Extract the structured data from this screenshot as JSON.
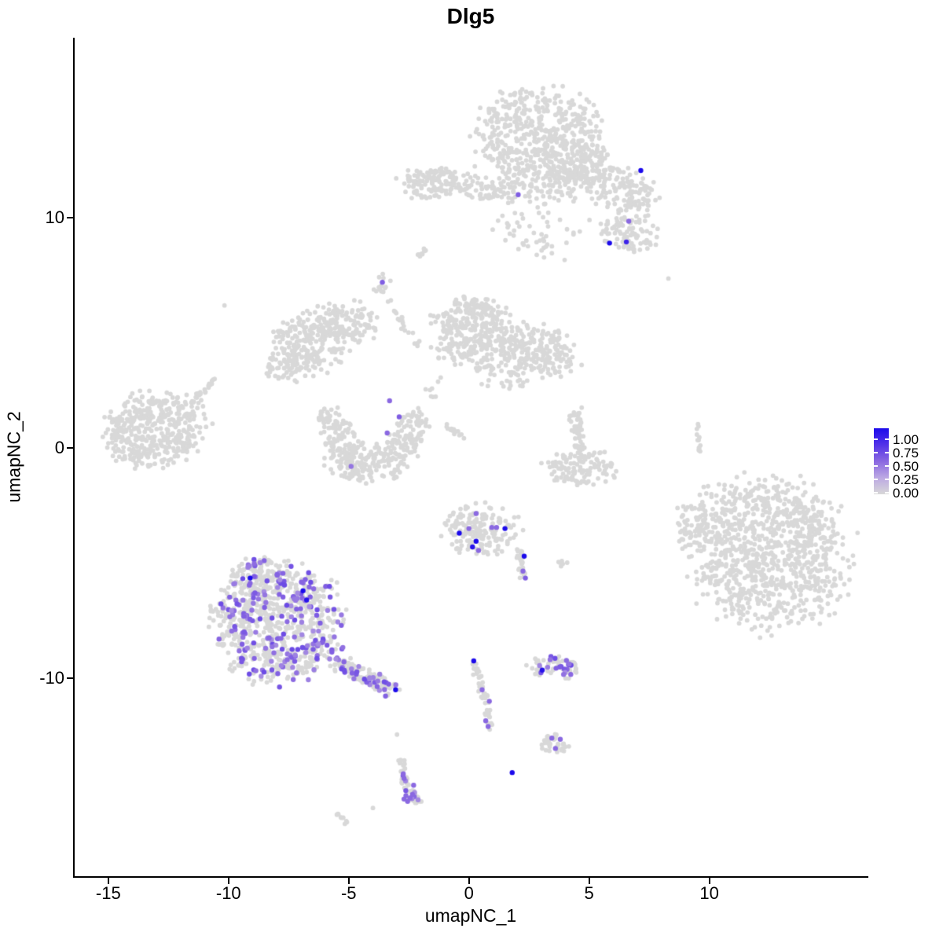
{
  "title": "Dlg5",
  "legend": {
    "labels": [
      "1.00",
      "0.75",
      "0.50",
      "0.25",
      "0.00"
    ]
  },
  "chart_data": {
    "type": "scatter",
    "title": "Dlg5",
    "xlabel": "umapNC_1",
    "ylabel": "umapNC_2",
    "xlim": [
      -16.4,
      16.55
    ],
    "ylim": [
      -18.6,
      17.82
    ],
    "grid": false,
    "legend_position": "right",
    "x_ticks": [
      {
        "label": "-15",
        "value": -15
      },
      {
        "label": "-10",
        "value": -10
      },
      {
        "label": "-5",
        "value": -5
      },
      {
        "label": "0",
        "value": 0
      },
      {
        "label": "5",
        "value": 5
      },
      {
        "label": "10",
        "value": 10
      }
    ],
    "y_ticks": [
      {
        "label": "10",
        "value": 10
      },
      {
        "label": "0",
        "value": 0
      },
      {
        "label": "-10",
        "value": -10
      }
    ],
    "colors": {
      "base_point": "#D8D8D8",
      "scale_stops": [
        "#D8D8D8",
        "#BCA9E3",
        "#8A68E1",
        "#5333E8",
        "#1C0AEB"
      ],
      "axis": "#000000"
    },
    "point_radius_px": 2.9,
    "expressed_radius_px": 3.2,
    "clusters": [
      {
        "name": "top-main",
        "shape": "blob",
        "x": 3.0,
        "y": 13.25,
        "rx": 2.4,
        "ry": 2.25,
        "rot": -15,
        "n": 620,
        "frac": 0
      },
      {
        "name": "top-arm",
        "shape": "blob",
        "x": 6.25,
        "y": 11.2,
        "rx": 1.5,
        "ry": 0.95,
        "rot": -20,
        "n": 140,
        "frac": 0
      },
      {
        "name": "top-bridge",
        "shape": "blob",
        "x": 4.8,
        "y": 12.2,
        "rx": 1.05,
        "ry": 0.9,
        "rot": 0,
        "n": 90,
        "frac": 0
      },
      {
        "name": "top-right-sub",
        "shape": "blob",
        "x": 6.6,
        "y": 9.3,
        "rx": 1.2,
        "ry": 0.8,
        "rot": 0,
        "n": 85,
        "frac": 0
      },
      {
        "name": "top-under-sparse",
        "shape": "blob",
        "x": 3.1,
        "y": 9.7,
        "rx": 1.7,
        "ry": 1.4,
        "rot": 0,
        "n": 60,
        "frac": 0
      },
      {
        "name": "band-left",
        "shape": "blob",
        "x": -1.3,
        "y": 11.5,
        "rx": 1.6,
        "ry": 0.65,
        "rot": 0,
        "n": 150,
        "frac": 0
      },
      {
        "name": "band-right",
        "shape": "blob",
        "x": 1.0,
        "y": 11.05,
        "rx": 0.85,
        "ry": 0.5,
        "rot": 0,
        "n": 45,
        "frac": 0
      },
      {
        "name": "slant-dash",
        "shape": "line",
        "x1": -2.1,
        "y1": 8.3,
        "x2": -1.75,
        "y2": 8.75,
        "w": 0.12,
        "n": 10,
        "frac": 0
      },
      {
        "name": "tiny-top",
        "shape": "blob",
        "x": -3.6,
        "y": 7.15,
        "rx": 0.35,
        "ry": 0.45,
        "rot": 0,
        "n": 14,
        "frac": 0
      },
      {
        "name": "strand-down",
        "shape": "line",
        "x1": -3.35,
        "y1": 6.4,
        "x2": -2.0,
        "y2": 4.2,
        "w": 0.15,
        "n": 20,
        "frac": 0
      },
      {
        "name": "wing-main",
        "shape": "blob",
        "x": -6.5,
        "y": 4.7,
        "rx": 1.55,
        "ry": 1.25,
        "rot": 20,
        "n": 240,
        "frac": 0
      },
      {
        "name": "wing-right",
        "shape": "blob",
        "x": -4.9,
        "y": 5.5,
        "rx": 1.05,
        "ry": 0.85,
        "rot": 0,
        "n": 90,
        "frac": 0
      },
      {
        "name": "wing-tail",
        "shape": "blob",
        "x": -7.6,
        "y": 3.5,
        "rx": 0.8,
        "ry": 0.6,
        "rot": 0,
        "n": 50,
        "frac": 0
      },
      {
        "name": "center-main",
        "shape": "blob",
        "x": 0.2,
        "y": 5.0,
        "rx": 1.6,
        "ry": 1.45,
        "rot": 0,
        "n": 330,
        "frac": 0
      },
      {
        "name": "center-right",
        "shape": "blob",
        "x": 2.9,
        "y": 4.2,
        "rx": 1.5,
        "ry": 1.05,
        "rot": -15,
        "n": 200,
        "frac": 0
      },
      {
        "name": "center-bridge",
        "shape": "blob",
        "x": 1.5,
        "y": 3.3,
        "rx": 1.2,
        "ry": 0.75,
        "rot": 0,
        "n": 45,
        "frac": 0
      },
      {
        "name": "v-strand",
        "shape": "line",
        "x1": 4.45,
        "y1": 1.6,
        "x2": 4.6,
        "y2": -0.3,
        "w": 0.3,
        "n": 55,
        "frac": 0
      },
      {
        "name": "v-base",
        "shape": "blob",
        "x": 4.7,
        "y": -0.85,
        "rx": 1.4,
        "ry": 0.7,
        "rot": 0,
        "n": 110,
        "frac": 0
      },
      {
        "name": "crescent-left",
        "shape": "blob",
        "x": -5.5,
        "y": 0.7,
        "rx": 0.65,
        "ry": 1.05,
        "rot": 25,
        "n": 90,
        "frac": 0
      },
      {
        "name": "crescent-bottom",
        "shape": "blob",
        "x": -4.2,
        "y": -0.65,
        "rx": 1.55,
        "ry": 0.8,
        "rot": 0,
        "n": 170,
        "frac": 0
      },
      {
        "name": "crescent-right",
        "shape": "blob",
        "x": -2.55,
        "y": 0.5,
        "rx": 0.7,
        "ry": 1.2,
        "rot": -20,
        "n": 110,
        "frac": 0
      },
      {
        "name": "far-left",
        "shape": "blob",
        "x": -13.1,
        "y": 0.8,
        "rx": 1.95,
        "ry": 1.45,
        "rot": 10,
        "n": 430,
        "frac": 0
      },
      {
        "name": "far-left-tail",
        "shape": "line",
        "x1": -11.6,
        "y1": 1.9,
        "x2": -10.6,
        "y2": 2.9,
        "w": 0.2,
        "n": 25,
        "frac": 0
      },
      {
        "name": "stray-upper-left",
        "shape": "blob",
        "x": -10.2,
        "y": 6.15,
        "rx": 0.05,
        "ry": 0.05,
        "rot": 0,
        "n": 1,
        "frac": 0
      },
      {
        "name": "legend-side-strand",
        "shape": "line",
        "x1": 9.5,
        "y1": 1.0,
        "x2": 9.6,
        "y2": -0.4,
        "w": 0.08,
        "n": 13,
        "frac": 0
      },
      {
        "name": "mid-strand",
        "shape": "line",
        "x1": -1.1,
        "y1": 1.1,
        "x2": -0.2,
        "y2": 0.4,
        "w": 0.12,
        "n": 14,
        "frac": 0
      },
      {
        "name": "mid-dots",
        "shape": "blob",
        "x": -1.3,
        "y": 2.5,
        "rx": 0.4,
        "ry": 0.55,
        "rot": 0,
        "n": 8,
        "frac": 0
      },
      {
        "name": "right-big",
        "shape": "blob",
        "x": 12.45,
        "y": -4.6,
        "rx": 3.15,
        "ry": 2.95,
        "rot": -25,
        "n": 950,
        "frac": 0
      },
      {
        "name": "right-big-west",
        "shape": "blob",
        "x": 9.45,
        "y": -3.3,
        "rx": 0.95,
        "ry": 0.95,
        "rot": 0,
        "n": 55,
        "frac": 0
      },
      {
        "name": "bottomleft-main",
        "shape": "blob",
        "x": -8.0,
        "y": -7.6,
        "rx": 2.5,
        "ry": 2.35,
        "rot": 0,
        "n": 780,
        "frac": 0.22
      },
      {
        "name": "bottomleft-top",
        "shape": "blob",
        "x": -8.7,
        "y": -5.6,
        "rx": 1.25,
        "ry": 0.8,
        "rot": 0,
        "n": 120,
        "frac": 0.1
      },
      {
        "name": "bottomleft-tail",
        "shape": "line",
        "x1": -5.6,
        "y1": -9.3,
        "x2": -3.1,
        "y2": -10.55,
        "w": 0.45,
        "n": 140,
        "frac": 0.3
      },
      {
        "name": "midbottom-main",
        "shape": "blob",
        "x": 0.5,
        "y": -3.55,
        "rx": 1.5,
        "ry": 1.0,
        "rot": 0,
        "n": 175,
        "frac": 0
      },
      {
        "name": "midbottom-arm",
        "shape": "line",
        "x1": 2.1,
        "y1": -4.5,
        "x2": 2.3,
        "y2": -5.7,
        "w": 0.2,
        "n": 30,
        "frac": 0
      },
      {
        "name": "midbottom-pair",
        "shape": "blob",
        "x": 3.95,
        "y": -5.0,
        "rx": 0.3,
        "ry": 0.15,
        "rot": 0,
        "n": 6,
        "frac": 0
      },
      {
        "name": "purple-small",
        "shape": "blob",
        "x": 3.5,
        "y": -9.5,
        "rx": 1.0,
        "ry": 0.5,
        "rot": 0,
        "n": 70,
        "frac": 0.32
      },
      {
        "name": "strand-bottom",
        "shape": "line",
        "x1": 0.2,
        "y1": -9.4,
        "x2": 1.0,
        "y2": -12.2,
        "w": 0.18,
        "n": 45,
        "frac": 0
      },
      {
        "name": "small-bottom",
        "shape": "blob",
        "x": 3.6,
        "y": -12.8,
        "rx": 0.55,
        "ry": 0.4,
        "rot": 0,
        "n": 32,
        "frac": 0
      },
      {
        "name": "curve-bottom-a",
        "shape": "line",
        "x1": -2.8,
        "y1": -13.55,
        "x2": -2.63,
        "y2": -14.7,
        "w": 0.2,
        "n": 25,
        "frac": 0.12
      },
      {
        "name": "curve-bottom-b",
        "shape": "line",
        "x1": -2.63,
        "y1": -14.7,
        "x2": -2.14,
        "y2": -15.45,
        "w": 0.25,
        "n": 30,
        "frac": 0.15
      },
      {
        "name": "dash-bottom",
        "shape": "line",
        "x1": -5.5,
        "y1": -15.8,
        "x2": -5.1,
        "y2": -16.3,
        "w": 0.1,
        "n": 9,
        "frac": 0
      },
      {
        "name": "stray-bottom-1",
        "shape": "blob",
        "x": -4.0,
        "y": -15.6,
        "rx": 0.05,
        "ry": 0.05,
        "rot": 0,
        "n": 1,
        "frac": 0
      },
      {
        "name": "stray-bottom-2",
        "shape": "blob",
        "x": -3.0,
        "y": -12.45,
        "rx": 0.05,
        "ry": 0.05,
        "rot": 0,
        "n": 1,
        "frac": 0
      },
      {
        "name": "stray-top-right",
        "shape": "blob",
        "x": 8.3,
        "y": 7.35,
        "rx": 0.05,
        "ry": 0.05,
        "rot": 0,
        "n": 1,
        "frac": 0
      }
    ],
    "expressed_points": [
      {
        "x": 7.15,
        "y": 12.05,
        "level": 1.0
      },
      {
        "x": 5.85,
        "y": 8.9,
        "level": 1.0
      },
      {
        "x": 6.55,
        "y": 8.95,
        "level": 0.85
      },
      {
        "x": 6.65,
        "y": 9.85,
        "level": 0.5
      },
      {
        "x": 2.05,
        "y": 11.0,
        "level": 0.55
      },
      {
        "x": -3.6,
        "y": 7.2,
        "level": 0.55
      },
      {
        "x": -3.3,
        "y": 2.05,
        "level": 0.5
      },
      {
        "x": -2.9,
        "y": 1.35,
        "level": 0.55
      },
      {
        "x": -3.4,
        "y": 0.65,
        "level": 0.5
      },
      {
        "x": -4.9,
        "y": -0.8,
        "level": 0.45
      },
      {
        "x": -9.1,
        "y": -5.65,
        "level": 1.0
      },
      {
        "x": -6.9,
        "y": -6.2,
        "level": 1.0
      },
      {
        "x": -6.75,
        "y": -6.6,
        "level": 0.95
      },
      {
        "x": -3.05,
        "y": -10.5,
        "level": 1.0
      },
      {
        "x": -0.4,
        "y": -3.7,
        "level": 1.0
      },
      {
        "x": 0.3,
        "y": -4.05,
        "level": 1.0
      },
      {
        "x": 0.15,
        "y": -4.3,
        "level": 0.95
      },
      {
        "x": 1.5,
        "y": -3.5,
        "level": 1.0
      },
      {
        "x": 2.3,
        "y": -4.7,
        "level": 1.0
      },
      {
        "x": 0.3,
        "y": -2.85,
        "level": 0.5
      },
      {
        "x": 0.0,
        "y": -3.5,
        "level": 0.5
      },
      {
        "x": 0.95,
        "y": -3.45,
        "level": 0.5
      },
      {
        "x": 1.15,
        "y": -3.45,
        "level": 0.5
      },
      {
        "x": 0.4,
        "y": -4.45,
        "level": 0.5
      },
      {
        "x": 2.25,
        "y": -5.35,
        "level": 0.5
      },
      {
        "x": 2.35,
        "y": -5.65,
        "level": 0.55
      },
      {
        "x": 3.05,
        "y": -9.65,
        "level": 0.95
      },
      {
        "x": 0.2,
        "y": -9.25,
        "level": 1.0
      },
      {
        "x": 0.55,
        "y": -10.5,
        "level": 0.5
      },
      {
        "x": 0.85,
        "y": -11.0,
        "level": 0.5
      },
      {
        "x": 0.7,
        "y": -11.85,
        "level": 0.5
      },
      {
        "x": 0.8,
        "y": -12.1,
        "level": 0.5
      },
      {
        "x": 3.45,
        "y": -12.6,
        "level": 0.5
      },
      {
        "x": 3.8,
        "y": -12.65,
        "level": 0.5
      },
      {
        "x": 3.6,
        "y": -13.05,
        "level": 0.5
      },
      {
        "x": 1.8,
        "y": -14.1,
        "level": 1.0
      },
      {
        "x": -2.73,
        "y": -14.15,
        "level": 0.5
      },
      {
        "x": -2.7,
        "y": -14.35,
        "level": 0.5
      },
      {
        "x": -2.3,
        "y": -14.65,
        "level": 0.5
      },
      {
        "x": -2.62,
        "y": -15.1,
        "level": 0.5
      },
      {
        "x": -2.45,
        "y": -15.2,
        "level": 0.5
      },
      {
        "x": -2.7,
        "y": -15.25,
        "level": 0.5
      },
      {
        "x": -2.35,
        "y": -15.05,
        "level": 0.5
      },
      {
        "x": -2.55,
        "y": -15.35,
        "level": 0.5
      }
    ]
  }
}
